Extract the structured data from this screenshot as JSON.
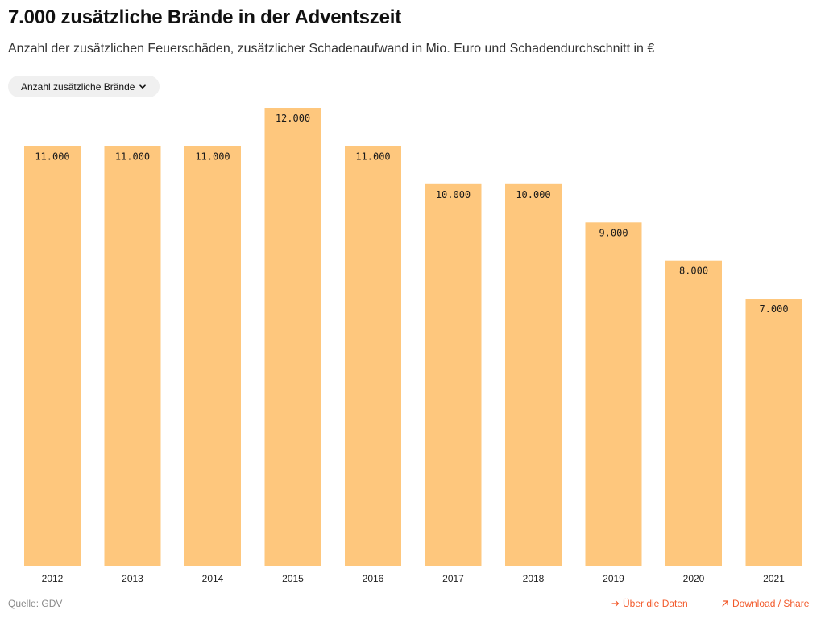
{
  "header": {
    "title": "7.000 zusätzliche Brände in der Adventszeit",
    "subtitle": "Anzahl der zusätzlichen Feuerschäden, zusätzlicher Schadenaufwand in Mio. Euro und Schadendurchschnitt in €"
  },
  "controls": {
    "dropdown_label": "Anzahl zusätzliche Brände",
    "dropdown_icon": "chevron-down-icon"
  },
  "chart_data": {
    "type": "bar",
    "title": "7.000 zusätzliche Brände in der Adventszeit",
    "subtitle": "Anzahl der zusätzlichen Feuerschäden, zusätzlicher Schadenaufwand in Mio. Euro und Schadendurchschnitt in €",
    "categories": [
      "2012",
      "2013",
      "2014",
      "2015",
      "2016",
      "2017",
      "2018",
      "2019",
      "2020",
      "2021"
    ],
    "values": [
      11000,
      11000,
      11000,
      12000,
      11000,
      10000,
      10000,
      9000,
      8000,
      7000
    ],
    "value_labels": [
      "11.000",
      "11.000",
      "11.000",
      "12.000",
      "11.000",
      "10.000",
      "10.000",
      "9.000",
      "8.000",
      "7.000"
    ],
    "xlabel": "",
    "ylabel": "",
    "ylim": [
      0,
      12000
    ],
    "grid": false,
    "legend": "none",
    "bar_color": "#fec77d"
  },
  "footer": {
    "source": "Quelle: GDV",
    "about_data_label": "Über die Daten",
    "download_share_label": "Download / Share",
    "link_color": "#f2592a"
  }
}
